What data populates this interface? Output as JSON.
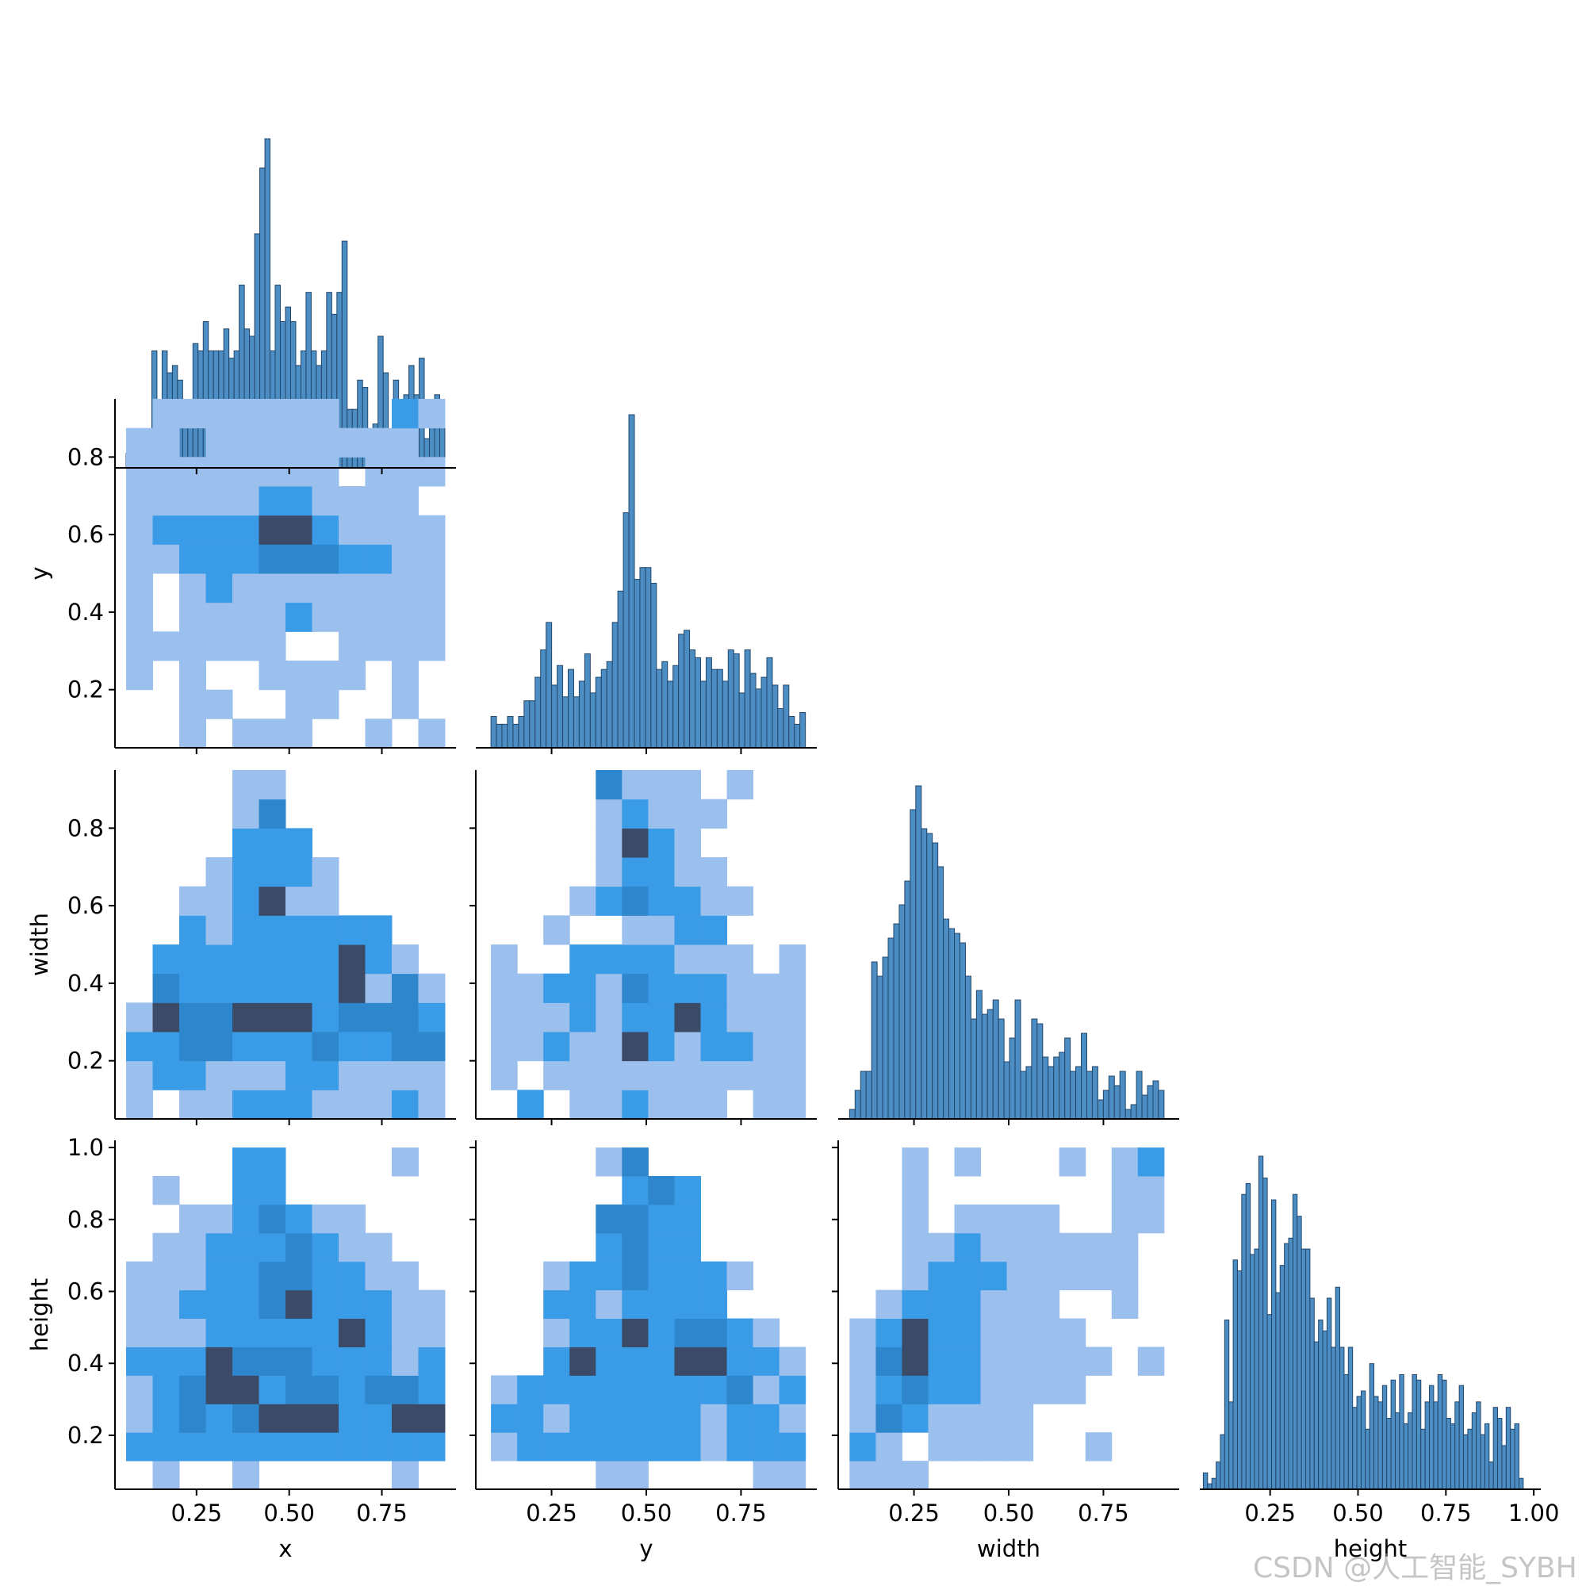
{
  "chart_data": {
    "type": "pairplot",
    "variables": [
      "x",
      "y",
      "width",
      "height"
    ],
    "kind": "hist",
    "corner": true,
    "color": "#1f77b4",
    "hist2d_palette": {
      "light": "#9cc0ee",
      "mid": "#3a9be6",
      "dark": "#2e86cc",
      "darkest": "#3b4a66"
    },
    "axis_ranges": {
      "x": [
        0.03,
        0.95
      ],
      "y": [
        0.05,
        0.95
      ],
      "width": [
        0.05,
        0.95
      ],
      "height": [
        0.05,
        1.02
      ]
    },
    "ticks": {
      "x": [
        0.25,
        0.5,
        0.75
      ],
      "y": [
        0.25,
        0.5,
        0.75
      ],
      "width": [
        0.25,
        0.5,
        0.75
      ],
      "height": [
        0.25,
        0.5,
        0.75,
        1.0
      ]
    },
    "tick_labels": {
      "x": [
        "0.25",
        "0.50",
        "0.75"
      ],
      "y": [
        "0.25",
        "0.50",
        "0.75"
      ],
      "width": [
        "0.25",
        "0.50",
        "0.75"
      ],
      "height": [
        "0.25",
        "0.50",
        "0.75",
        "1.00"
      ]
    },
    "y_tick_labels": {
      "y": [
        "0.2",
        "0.4",
        "0.6",
        "0.8"
      ],
      "width": [
        "0.2",
        "0.4",
        "0.6",
        "0.8"
      ],
      "height": [
        "0.2",
        "0.4",
        "0.6",
        "0.8",
        "1.0"
      ]
    },
    "y_ticks": {
      "y": [
        0.2,
        0.4,
        0.6,
        0.8
      ],
      "width": [
        0.2,
        0.4,
        0.6,
        0.8
      ],
      "height": [
        0.2,
        0.4,
        0.6,
        0.8,
        1.0
      ]
    },
    "axis_labels": {
      "x": "x",
      "y": "y",
      "width": "width",
      "height": "height"
    },
    "diag_hist": {
      "x": {
        "range": [
          0.06,
          0.92
        ],
        "counts": [
          2,
          4,
          2,
          5,
          2,
          16,
          9,
          16,
          13,
          14,
          12,
          7,
          7,
          17,
          16,
          20,
          16,
          16,
          16,
          19,
          15,
          16,
          25,
          19,
          18,
          32,
          41,
          45,
          16,
          25,
          20,
          22,
          20,
          14,
          16,
          24,
          16,
          14,
          16,
          24,
          21,
          24,
          31,
          8,
          8,
          12,
          11,
          5,
          6,
          18,
          13,
          4,
          12,
          8,
          10,
          14,
          10,
          15,
          4,
          6,
          10,
          8
        ]
      },
      "y": {
        "range": [
          0.09,
          0.92
        ],
        "counts": [
          8,
          6,
          6,
          8,
          6,
          8,
          12,
          12,
          18,
          25,
          32,
          16,
          21,
          13,
          20,
          13,
          17,
          24,
          14,
          18,
          20,
          22,
          32,
          40,
          60,
          85,
          43,
          46,
          46,
          42,
          20,
          22,
          17,
          21,
          29,
          30,
          25,
          23,
          17,
          23,
          20,
          20,
          17,
          25,
          24,
          14,
          25,
          19,
          15,
          18,
          23,
          16,
          10,
          16,
          8,
          6,
          9
        ]
      },
      "width": {
        "range": [
          0.08,
          0.91
        ],
        "counts": [
          2,
          6,
          10,
          10,
          33,
          30,
          34,
          38,
          41,
          45,
          50,
          65,
          70,
          61,
          60,
          58,
          53,
          42,
          40,
          39,
          37,
          30,
          21,
          27,
          22,
          23,
          25,
          21,
          12,
          17,
          25,
          10,
          11,
          21,
          20,
          13,
          11,
          13,
          14,
          17,
          10,
          11,
          18,
          10,
          11,
          4,
          6,
          9,
          7,
          10,
          2,
          3,
          10,
          5,
          7,
          8,
          6
        ]
      },
      "height": {
        "range": [
          0.06,
          0.97
        ],
        "counts": [
          3,
          1,
          2,
          5,
          10,
          31,
          16,
          42,
          40,
          54,
          56,
          43,
          44,
          61,
          57,
          32,
          53,
          36,
          41,
          45,
          46,
          54,
          50,
          44,
          44,
          35,
          27,
          31,
          29,
          35,
          26,
          37,
          26,
          21,
          26,
          15,
          17,
          18,
          11,
          23,
          17,
          16,
          19,
          13,
          20,
          14,
          21,
          12,
          14,
          21,
          20,
          11,
          16,
          19,
          16,
          21,
          20,
          13,
          12,
          16,
          19,
          10,
          11,
          14,
          16,
          10,
          12,
          5,
          15,
          13,
          8,
          15,
          11,
          12,
          2
        ]
      }
    },
    "hist2d": {
      "y_vs_x": {
        "x_bins": 12,
        "y_bins": 12,
        "x_range": [
          0.06,
          0.92
        ],
        "y_range": [
          0.05,
          0.95
        ],
        "grid": [
          "0.l.lll..l.l",
          "..ll..ll..l.",
          "l.l..llll.l.",
          "llllll..llll",
          "l.llllmlllll",
          "l.lmllllllll",
          "llmmmdddmmll",
          "lmmmmDDmllll",
          "lllllmmllll.",
          "llllllll.lll",
          "ll.llllllll.",
          ".lllllll..ml"
        ]
      },
      "width_vs_x": {
        "x_bins": 12,
        "y_bins": 12,
        "x_range": [
          0.06,
          0.92
        ],
        "y_range": [
          0.05,
          0.95
        ],
        "grid": [
          "l.llmmmlllml",
          "lmmlllmmllll",
          "mmddmmmdmmdd",
          "lDddDDDmdddm",
          ".dmmmmmmDldl",
          ".mmmmmmmDml.",
          "..mlmmmmmm..",
          "..llmDll....",
          "...lmmml....",
          "....mmm.....",
          "....ld......",
          "....ll......"
        ]
      },
      "width_vs_y": {
        "x_bins": 12,
        "y_bins": 12,
        "x_range": [
          0.09,
          0.92
        ],
        "y_range": [
          0.05,
          0.95
        ],
        "grid": [
          ".m.llmlll.ll",
          "l.llllllllll",
          "llmllDmlmmll",
          "lllmlmmDmlll",
          "llmmldmmmlll",
          "l..mmmmlll.l",
          "..l..llmm...",
          "...lmdmmll..",
          "....lmmll...",
          "....lDml....",
          "....lmlll...",
          "....dlll.l.."
        ]
      },
      "height_vs_x": {
        "x_bins": 12,
        "y_bins": 12,
        "x_range": [
          0.06,
          0.92
        ],
        "y_range": [
          0.05,
          1.0
        ],
        "grid": [
          ".l..l.....l.",
          "mmmmmmmmmmmm",
          "lmdmdDDDmmDD",
          "lmdDDmddmddm",
          "mmmDdddmmmlm",
          "lllmmmmmDmll",
          "llmmmdDmmmll",
          "lllmmddmmll.",
          ".llmmmdmll..",
          "..llmdmll...",
          ".l..mm......",
          "....mm....l."
        ]
      },
      "height_vs_y": {
        "x_bins": 12,
        "y_bins": 12,
        "x_range": [
          0.09,
          0.92
        ],
        "y_range": [
          0.05,
          1.0
        ],
        "grid": [
          "....ll....ll",
          "lmmmmmmmlmmm",
          "mmlmmmmmlmml",
          "lmmmmmmmmdlm",
          "..mDmmmDDmml",
          "..lmmDmddml.",
          "..mmlmmmm...",
          "..lmmdmmml..",
          "....mdmm....",
          "....ddmm....",
          ".....mdm....",
          "....ld......"
        ]
      },
      "height_vs_width": {
        "x_bins": 12,
        "y_bins": 12,
        "x_range": [
          0.08,
          0.91
        ],
        "y_range": [
          0.05,
          1.0
        ],
        "grid": [
          "lll.........",
          "ml.llll..l..",
          "ldmllll.....",
          "lmdmmllll...",
          "ldDmmlllll.l",
          "lmDmmllll...",
          ".lmmmlll..l.",
          "..lmmmlllll.",
          "..llmllllll.",
          "..l.llll..lll",
          "..l.......ll",
          "..l.l...l.lm"
        ]
      }
    }
  },
  "watermark": "CSDN @人工智能_SYBH"
}
